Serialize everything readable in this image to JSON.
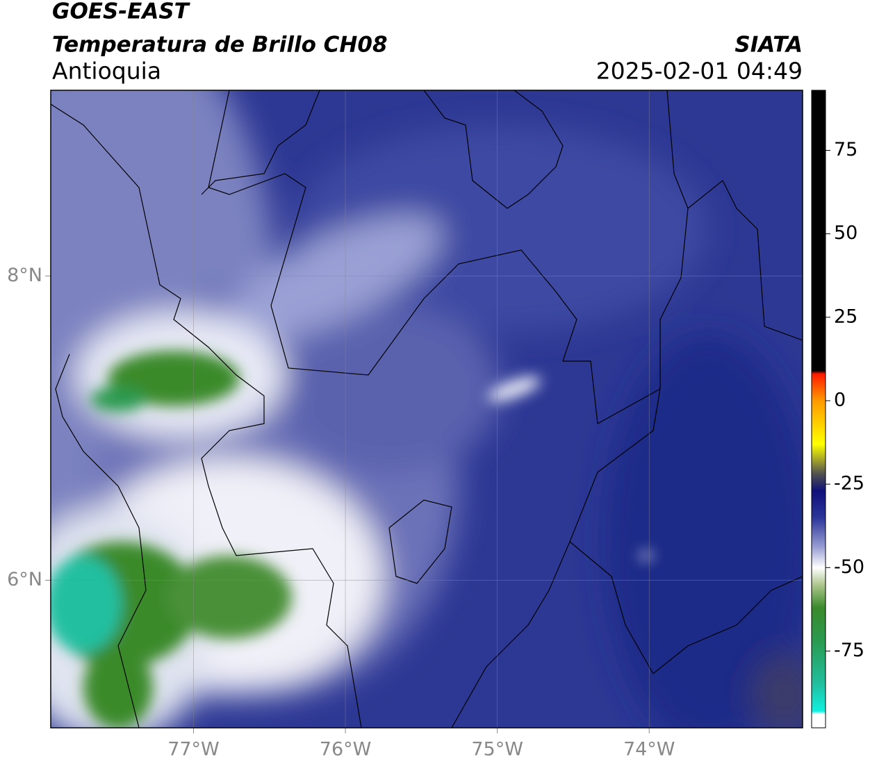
{
  "header": {
    "satellite": "GOES-EAST",
    "product": "Temperatura de Brillo CH08",
    "region": "Antioquia",
    "source": "SIATA",
    "datetime": "2025-02-01 04:49"
  },
  "map": {
    "xlim": [
      -77.94,
      -72.99
    ],
    "ylim": [
      5.03,
      9.22
    ],
    "xticks": [
      {
        "value": -77,
        "label": "77°W"
      },
      {
        "value": -76,
        "label": "76°W"
      },
      {
        "value": -75,
        "label": "75°W"
      },
      {
        "value": -74,
        "label": "74°W"
      }
    ],
    "yticks": [
      {
        "value": 8,
        "label": "8°N"
      },
      {
        "value": 6,
        "label": "6°N"
      }
    ],
    "grid": true
  },
  "colorbar": {
    "range": [
      -98,
      93
    ],
    "ticks": [
      75,
      50,
      25,
      0,
      -25,
      -50,
      -75
    ],
    "stops": [
      {
        "value": 93,
        "color": "#000000"
      },
      {
        "value": 9,
        "color": "#000000"
      },
      {
        "value": 8,
        "color": "#ff1a00"
      },
      {
        "value": 0,
        "color": "#ff9900"
      },
      {
        "value": -13,
        "color": "#ffff00"
      },
      {
        "value": -22,
        "color": "#505050"
      },
      {
        "value": -27,
        "color": "#10107a"
      },
      {
        "value": -35,
        "color": "#2a3599"
      },
      {
        "value": -44,
        "color": "#9aa0d4"
      },
      {
        "value": -50,
        "color": "#ffffff"
      },
      {
        "value": -55,
        "color": "#b0c890"
      },
      {
        "value": -62,
        "color": "#3a8a2a"
      },
      {
        "value": -72,
        "color": "#2a9a50"
      },
      {
        "value": -85,
        "color": "#20c0a0"
      },
      {
        "value": -93,
        "color": "#10f0e0"
      },
      {
        "value": -94,
        "color": "#ffffff"
      },
      {
        "value": -98,
        "color": "#ffffff"
      }
    ]
  }
}
